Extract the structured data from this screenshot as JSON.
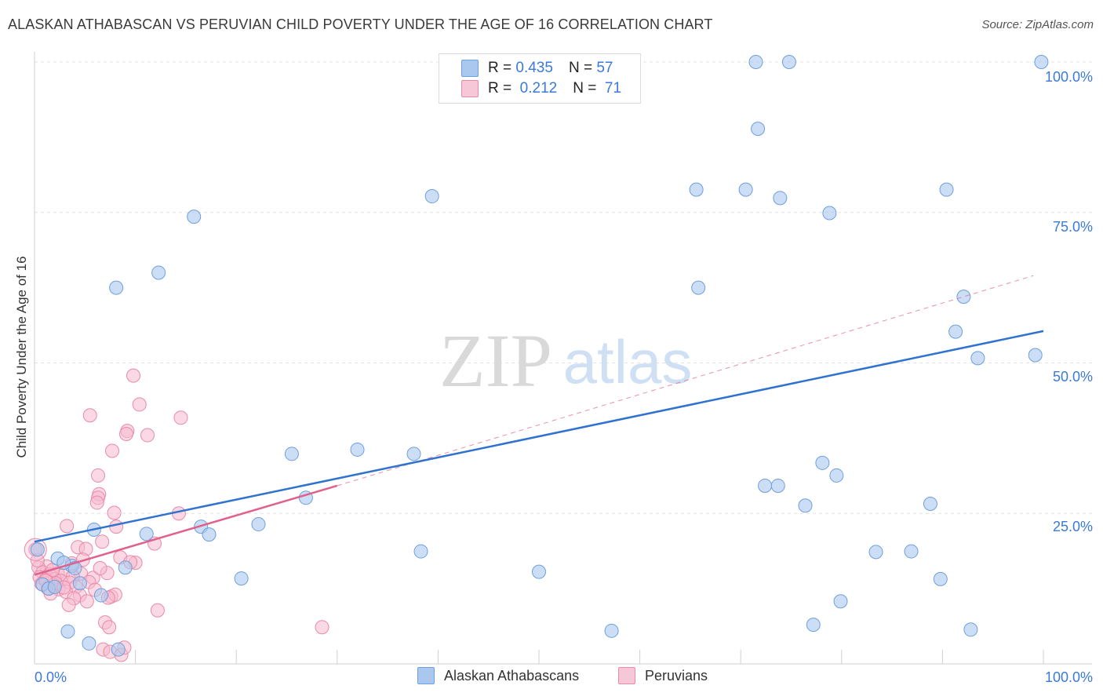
{
  "header": {
    "title": "ALASKAN ATHABASCAN VS PERUVIAN CHILD POVERTY UNDER THE AGE OF 16 CORRELATION CHART",
    "source": "Source: ZipAtlas.com"
  },
  "watermark": {
    "zip": "ZIP",
    "atlas": "atlas"
  },
  "legend_top": {
    "rows": [
      {
        "r_label": "R =",
        "r_value": "0.435",
        "n_label": "N =",
        "n_value": "57"
      },
      {
        "r_label": "R =",
        "r_value": "0.212",
        "n_label": "N =",
        "n_value": "71"
      }
    ]
  },
  "legend_bottom": {
    "items": [
      "Alaskan Athabascans",
      "Peruvians"
    ]
  },
  "colors": {
    "blue_fill": "#aac8ee",
    "blue_stroke": "#6f9fdc",
    "blue_line": "#2f72d0",
    "pink_fill": "#f6b9cd",
    "pink_stroke": "#e98aa8",
    "pink_line": "#e0618b",
    "grid": "#e2e2e2",
    "tick_label": "#3b7ad8"
  },
  "chart_data": {
    "type": "scatter",
    "title": "ALASKAN ATHABASCAN VS PERUVIAN CHILD POVERTY UNDER THE AGE OF 16 CORRELATION CHART",
    "xlabel": "",
    "ylabel": "Child Poverty Under the Age of 16",
    "xlim": [
      0,
      100
    ],
    "ylim": [
      0,
      100
    ],
    "x_tick_labels": [
      "0.0%",
      "100.0%"
    ],
    "y_tick_labels": [
      "25.0%",
      "50.0%",
      "75.0%",
      "100.0%"
    ],
    "y_ticks": [
      25,
      50,
      75,
      100
    ],
    "grid": true,
    "legend_position": "top-center",
    "series": [
      {
        "name": "Alaskan Athabascans",
        "color": "#aac8ee",
        "r": 0.435,
        "n": 57,
        "trend": {
          "x0": 0,
          "y0": 20.3,
          "x1": 100,
          "y1": 55.3,
          "style": "solid"
        },
        "points": [
          [
            71.5,
            100
          ],
          [
            74.8,
            100
          ],
          [
            99.8,
            100
          ],
          [
            71.7,
            88.9
          ],
          [
            39.4,
            77.7
          ],
          [
            65.6,
            78.8
          ],
          [
            70.5,
            78.8
          ],
          [
            73.9,
            77.4
          ],
          [
            90.4,
            78.8
          ],
          [
            78.8,
            74.9
          ],
          [
            15.8,
            74.3
          ],
          [
            12.3,
            65
          ],
          [
            8.1,
            62.5
          ],
          [
            65.8,
            62.5
          ],
          [
            92.1,
            61
          ],
          [
            91.3,
            55.2
          ],
          [
            93.5,
            50.8
          ],
          [
            99.2,
            51.3
          ],
          [
            32,
            35.6
          ],
          [
            25.5,
            34.9
          ],
          [
            37.6,
            34.9
          ],
          [
            78.1,
            33.4
          ],
          [
            79.5,
            31.3
          ],
          [
            72.4,
            29.6
          ],
          [
            73.7,
            29.6
          ],
          [
            26.9,
            27.6
          ],
          [
            76.4,
            26.3
          ],
          [
            88.8,
            26.6
          ],
          [
            5.9,
            22.3
          ],
          [
            11.1,
            21.6
          ],
          [
            16.5,
            22.8
          ],
          [
            17.3,
            21.5
          ],
          [
            22.2,
            23.2
          ],
          [
            0.3,
            19
          ],
          [
            38.3,
            18.7
          ],
          [
            83.4,
            18.6
          ],
          [
            86.9,
            18.7
          ],
          [
            2.3,
            17.5
          ],
          [
            3.7,
            16.3
          ],
          [
            4,
            15.9
          ],
          [
            2.9,
            16.8
          ],
          [
            9,
            16
          ],
          [
            50,
            15.3
          ],
          [
            20.5,
            14.2
          ],
          [
            89.8,
            14.1
          ],
          [
            0.8,
            13.2
          ],
          [
            1.4,
            12.5
          ],
          [
            4.5,
            13.4
          ],
          [
            6.6,
            11.4
          ],
          [
            79.9,
            10.4
          ],
          [
            3.3,
            5.4
          ],
          [
            5.4,
            3.4
          ],
          [
            8.3,
            2.4
          ],
          [
            57.2,
            5.5
          ],
          [
            77.2,
            6.5
          ],
          [
            92.8,
            5.7
          ],
          [
            2,
            12.8
          ]
        ]
      },
      {
        "name": "Peruvians",
        "color": "#f6b9cd",
        "r": 0.212,
        "n": 71,
        "trend": {
          "x0": 0,
          "y0": 14.8,
          "x1": 30,
          "y1": 29.6,
          "style": "solid"
        },
        "trend_extension": {
          "x0": 30,
          "y0": 29.6,
          "x1": 99,
          "y1": 64.5,
          "style": "dashed"
        },
        "points": [
          [
            9.8,
            47.9
          ],
          [
            10.4,
            43.1
          ],
          [
            5.5,
            41.3
          ],
          [
            14.5,
            40.9
          ],
          [
            9.2,
            38.7
          ],
          [
            9.1,
            38.2
          ],
          [
            11.2,
            38
          ],
          [
            7.7,
            35.4
          ],
          [
            6.3,
            31.3
          ],
          [
            6.4,
            28.2
          ],
          [
            6.3,
            27.6
          ],
          [
            6.2,
            26.8
          ],
          [
            7.9,
            25.1
          ],
          [
            14.3,
            25
          ],
          [
            3.2,
            22.9
          ],
          [
            8.1,
            22.8
          ],
          [
            6.7,
            20.3
          ],
          [
            11.9,
            20
          ],
          [
            4.3,
            19.4
          ],
          [
            5.1,
            19.1
          ],
          [
            0.1,
            19
          ],
          [
            8.5,
            17.7
          ],
          [
            10,
            16.8
          ],
          [
            3.7,
            16.7
          ],
          [
            1.2,
            16.2
          ],
          [
            0.4,
            16
          ],
          [
            0.8,
            15.2
          ],
          [
            2.3,
            15.1
          ],
          [
            4.6,
            15
          ],
          [
            7.2,
            15.1
          ],
          [
            1.5,
            14.9
          ],
          [
            2.8,
            14.7
          ],
          [
            3.8,
            14.5
          ],
          [
            5.8,
            14.3
          ],
          [
            0.5,
            14.4
          ],
          [
            2,
            14.1
          ],
          [
            1.1,
            14
          ],
          [
            2.6,
            13.8
          ],
          [
            3.5,
            13.5
          ],
          [
            5.4,
            13.6
          ],
          [
            0.7,
            13.3
          ],
          [
            1.9,
            13.1
          ],
          [
            4.1,
            12.8
          ],
          [
            1.3,
            12.6
          ],
          [
            2.4,
            12.4
          ],
          [
            6,
            12.3
          ],
          [
            3.1,
            12
          ],
          [
            1.6,
            11.7
          ],
          [
            4.5,
            11.4
          ],
          [
            7.6,
            11.2
          ],
          [
            8,
            11.5
          ],
          [
            3.9,
            10.9
          ],
          [
            7.3,
            11
          ],
          [
            5.2,
            10.4
          ],
          [
            3.4,
            9.8
          ],
          [
            12.2,
            8.9
          ],
          [
            7,
            6.9
          ],
          [
            7.4,
            6.1
          ],
          [
            28.5,
            6.1
          ],
          [
            6.8,
            2.4
          ],
          [
            7.5,
            2
          ],
          [
            8.6,
            1.5
          ],
          [
            8.9,
            2.7
          ],
          [
            1.8,
            15.6
          ],
          [
            2.1,
            13.4
          ],
          [
            0.3,
            17.2
          ],
          [
            4.8,
            17.3
          ],
          [
            9.5,
            16.9
          ],
          [
            6.5,
            15.9
          ],
          [
            2.9,
            12.7
          ],
          [
            1.1,
            13.8
          ]
        ]
      }
    ]
  }
}
